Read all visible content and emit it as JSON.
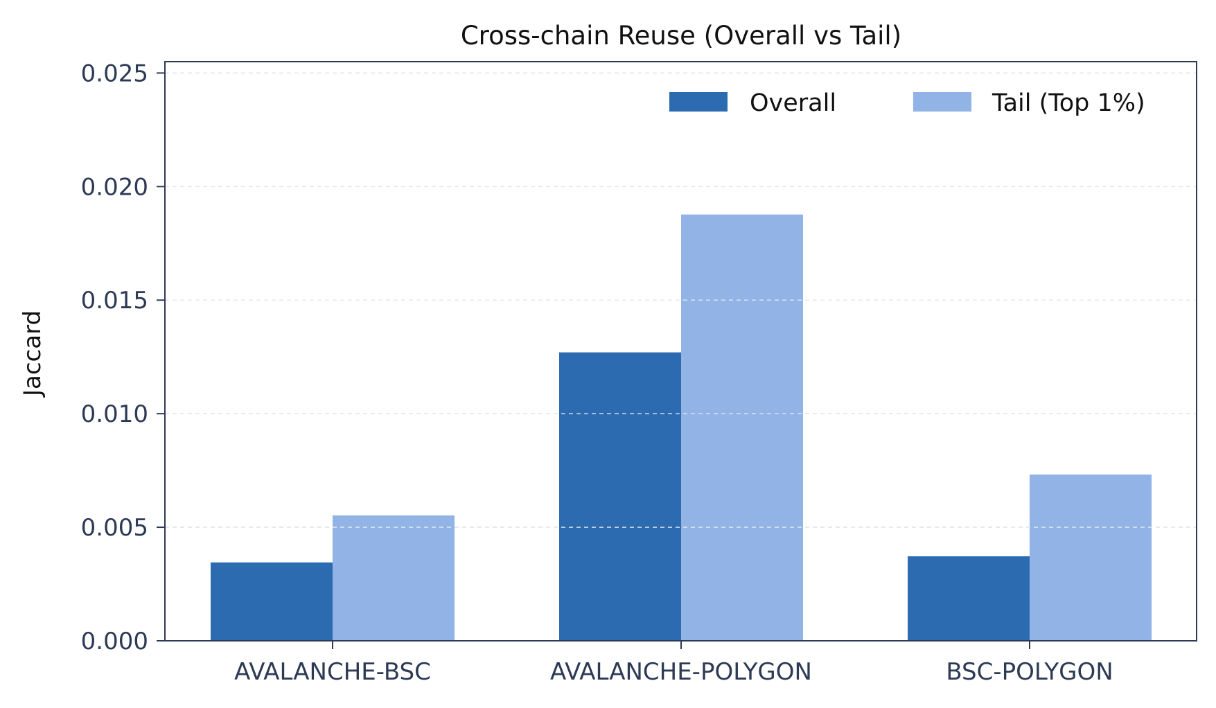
{
  "chart_data": {
    "type": "bar",
    "title": "Cross-chain Reuse (Overall vs Tail)",
    "xlabel": "",
    "ylabel": "Jaccard",
    "categories": [
      "AVALANCHE-BSC",
      "AVALANCHE-POLYGON",
      "BSC-POLYGON"
    ],
    "series": [
      {
        "name": "Overall",
        "values": [
          0.00345,
          0.0127,
          0.00372
        ],
        "color": "#2c6bb0"
      },
      {
        "name": "Tail (Top 1%)",
        "values": [
          0.00552,
          0.01877,
          0.00732
        ],
        "color": "#91b3e6"
      }
    ],
    "ylim": [
      0,
      0.0255
    ],
    "yticks": [
      "0.000",
      "0.005",
      "0.010",
      "0.015",
      "0.020",
      "0.025"
    ],
    "grid": "horizontal dashed",
    "legend_position": "top-right"
  }
}
